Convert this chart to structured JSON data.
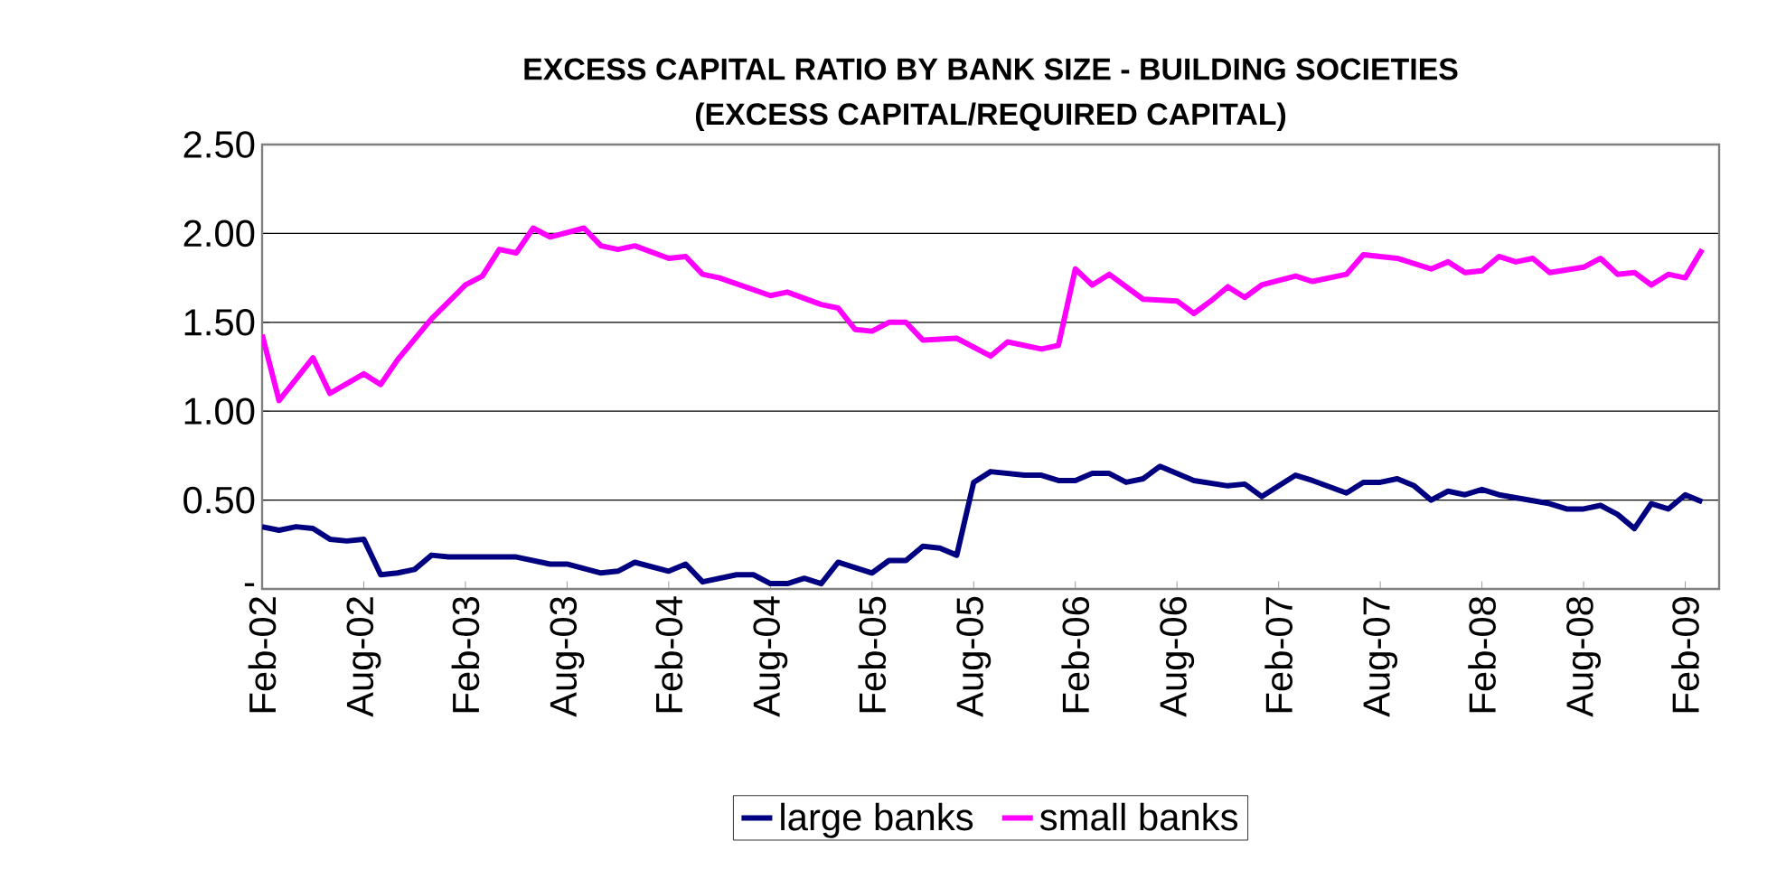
{
  "chart_data": {
    "type": "line",
    "title": "EXCESS CAPITAL RATIO BY BANK SIZE - BUILDING SOCIETIES",
    "subtitle": "(EXCESS CAPITAL/REQUIRED CAPITAL)",
    "xlim": [
      "2002-02",
      "2009-04"
    ],
    "xticks": [
      {
        "value": "2002-02",
        "label": "Feb-02"
      },
      {
        "value": "2002-08",
        "label": "Aug-02"
      },
      {
        "value": "2003-02",
        "label": "Feb-03"
      },
      {
        "value": "2003-08",
        "label": "Aug-03"
      },
      {
        "value": "2004-02",
        "label": "Feb-04"
      },
      {
        "value": "2004-08",
        "label": "Aug-04"
      },
      {
        "value": "2005-02",
        "label": "Feb-05"
      },
      {
        "value": "2005-08",
        "label": "Aug-05"
      },
      {
        "value": "2006-02",
        "label": "Feb-06"
      },
      {
        "value": "2006-08",
        "label": "Aug-06"
      },
      {
        "value": "2007-02",
        "label": "Feb-07"
      },
      {
        "value": "2007-08",
        "label": "Aug-07"
      },
      {
        "value": "2008-02",
        "label": "Feb-08"
      },
      {
        "value": "2008-08",
        "label": "Aug-08"
      },
      {
        "value": "2009-02",
        "label": "Feb-09"
      }
    ],
    "ylim": [
      0,
      2.5
    ],
    "yticks": [
      {
        "value": 0,
        "label": "-"
      },
      {
        "value": 0.5,
        "label": "0.50"
      },
      {
        "value": 1,
        "label": "1.00"
      },
      {
        "value": 1.5,
        "label": "1.50"
      },
      {
        "value": 2,
        "label": "2.00"
      },
      {
        "value": 2.5,
        "label": "2.50"
      }
    ],
    "grid": "y",
    "legend": "bottom",
    "marker": "none",
    "line_style": "solid",
    "series": [
      {
        "name": "large banks",
        "color": "#000080",
        "x": [
          "2002-02",
          "2002-03",
          "2002-04",
          "2002-05",
          "2002-06",
          "2002-07",
          "2002-08",
          "2002-09",
          "2002-10",
          "2002-11",
          "2002-12",
          "2003-01",
          "2003-03",
          "2003-05",
          "2003-07",
          "2003-08",
          "2003-10",
          "2003-11",
          "2003-12",
          "2004-02",
          "2004-03",
          "2004-04",
          "2004-06",
          "2004-07",
          "2004-08",
          "2004-09",
          "2004-10",
          "2004-11",
          "2004-12",
          "2005-02",
          "2005-03",
          "2005-04",
          "2005-05",
          "2005-06",
          "2005-07",
          "2005-08",
          "2005-09",
          "2005-11",
          "2005-12",
          "2006-01",
          "2006-02",
          "2006-03",
          "2006-04",
          "2006-05",
          "2006-06",
          "2006-07",
          "2006-09",
          "2006-11",
          "2006-12",
          "2007-01",
          "2007-03",
          "2007-04",
          "2007-06",
          "2007-07",
          "2007-08",
          "2007-09",
          "2007-10",
          "2007-11",
          "2007-12",
          "2008-01",
          "2008-02",
          "2008-03",
          "2008-06",
          "2008-07",
          "2008-08",
          "2008-09",
          "2008-10",
          "2008-11",
          "2008-12",
          "2009-01",
          "2009-02",
          "2009-03"
        ],
        "values": [
          0.35,
          0.33,
          0.35,
          0.34,
          0.28,
          0.27,
          0.28,
          0.08,
          0.09,
          0.11,
          0.19,
          0.18,
          0.18,
          0.18,
          0.14,
          0.14,
          0.09,
          0.1,
          0.15,
          0.1,
          0.14,
          0.04,
          0.08,
          0.08,
          0.03,
          0.03,
          0.06,
          0.03,
          0.15,
          0.09,
          0.16,
          0.16,
          0.24,
          0.23,
          0.19,
          0.6,
          0.66,
          0.64,
          0.64,
          0.61,
          0.61,
          0.65,
          0.65,
          0.6,
          0.62,
          0.69,
          0.61,
          0.58,
          0.59,
          0.52,
          0.64,
          0.61,
          0.54,
          0.6,
          0.6,
          0.62,
          0.58,
          0.5,
          0.55,
          0.53,
          0.56,
          0.53,
          0.48,
          0.45,
          0.45,
          0.47,
          0.42,
          0.34,
          0.48,
          0.45,
          0.53,
          0.49
        ]
      },
      {
        "name": "small banks",
        "color": "#ff00ff",
        "x": [
          "2002-02",
          "2002-03",
          "2002-04",
          "2002-05",
          "2002-06",
          "2002-08",
          "2002-09",
          "2002-10",
          "2002-12",
          "2003-02",
          "2003-03",
          "2003-04",
          "2003-05",
          "2003-06",
          "2003-07",
          "2003-09",
          "2003-10",
          "2003-11",
          "2003-12",
          "2004-02",
          "2004-03",
          "2004-04",
          "2004-05",
          "2004-08",
          "2004-09",
          "2004-11",
          "2004-12",
          "2005-01",
          "2005-02",
          "2005-03",
          "2005-04",
          "2005-05",
          "2005-07",
          "2005-09",
          "2005-10",
          "2005-12",
          "2006-01",
          "2006-02",
          "2006-03",
          "2006-04",
          "2006-06",
          "2006-08",
          "2006-09",
          "2006-10",
          "2006-11",
          "2006-12",
          "2007-01",
          "2007-03",
          "2007-04",
          "2007-06",
          "2007-07",
          "2007-09",
          "2007-11",
          "2007-12",
          "2008-01",
          "2008-02",
          "2008-03",
          "2008-04",
          "2008-05",
          "2008-06",
          "2008-08",
          "2008-09",
          "2008-10",
          "2008-11",
          "2008-12",
          "2009-01",
          "2009-02",
          "2009-03"
        ],
        "values": [
          1.43,
          1.06,
          1.18,
          1.3,
          1.1,
          1.21,
          1.15,
          1.29,
          1.52,
          1.71,
          1.76,
          1.91,
          1.89,
          2.03,
          1.98,
          2.03,
          1.93,
          1.91,
          1.93,
          1.86,
          1.87,
          1.77,
          1.75,
          1.65,
          1.67,
          1.6,
          1.58,
          1.46,
          1.45,
          1.5,
          1.5,
          1.4,
          1.41,
          1.31,
          1.39,
          1.35,
          1.37,
          1.8,
          1.71,
          1.77,
          1.63,
          1.62,
          1.55,
          1.62,
          1.7,
          1.64,
          1.71,
          1.76,
          1.73,
          1.77,
          1.88,
          1.86,
          1.8,
          1.84,
          1.78,
          1.79,
          1.87,
          1.84,
          1.86,
          1.78,
          1.81,
          1.86,
          1.77,
          1.78,
          1.71,
          1.77,
          1.75,
          1.91
        ]
      }
    ]
  }
}
